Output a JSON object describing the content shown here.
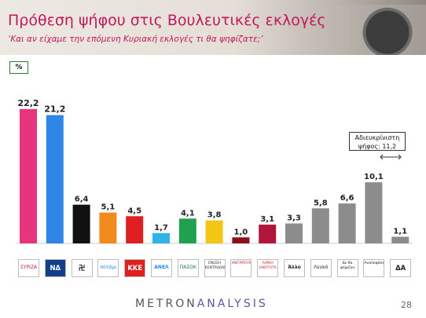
{
  "header": {
    "title": "Πρόθεση ψήφου στις Βουλευτικές εκλογές",
    "subtitle": "‘Και αν είχαμε την επόμενη Κυριακή εκλογές τι θα ψηφίζατε;’"
  },
  "unit_label": "%",
  "annotation": {
    "line1": "Αδιευκρίνιστη",
    "line2": "ψήφος: 11,2"
  },
  "chart_data": {
    "type": "bar",
    "categories": [
      "ΣΥΡΙΖΑ",
      "ΝΔ",
      "Χρυσή Αυγή",
      "Ποτάμι",
      "ΚΚΕ",
      "ΑΝΕΛ",
      "ΠΑΣΟΚ",
      "Ένωση Κεντρώων",
      "ΑΝΤΑΡΣΥΑ",
      "ΛΑΪΚΗ ΕΝΟΤΗΤΑ",
      "Άλλο",
      "Λευκό",
      "Δε θα ψήφιζαν",
      "Αναποφάσιστοι",
      "ΔΑ"
    ],
    "values": [
      22.2,
      21.2,
      6.4,
      5.1,
      4.5,
      1.7,
      4.1,
      3.8,
      1.0,
      3.1,
      3.3,
      5.8,
      6.6,
      10.1,
      1.1
    ],
    "value_labels": [
      "22,2",
      "21,2",
      "6,4",
      "5,1",
      "4,5",
      "1,7",
      "4,1",
      "3,8",
      "1,0",
      "3,1",
      "3,3",
      "5,8",
      "6,6",
      "10,1",
      "1,1"
    ],
    "colors": [
      "#e8337d",
      "#2f86e6",
      "#111111",
      "#f28a1e",
      "#e02020",
      "#2fb2e8",
      "#21a150",
      "#f5c516",
      "#8b0f1e",
      "#b0163a",
      "#8c8c8c",
      "#8c8c8c",
      "#8c8c8c",
      "#8c8c8c",
      "#8c8c8c"
    ],
    "ylim": [
      0,
      24
    ],
    "grid": false,
    "legend": "bottom"
  },
  "legend_items": [
    {
      "text": "ΣΥΡΙΖΑ",
      "bg": "#ffffff",
      "fg": "#c2185b"
    },
    {
      "text": "ΝΔ",
      "bg": "#123f8c",
      "fg": "#ffffff"
    },
    {
      "text": "卍",
      "bg": "#ffffff",
      "fg": "#000000"
    },
    {
      "text": "ποτάμι",
      "bg": "#ffffff",
      "fg": "#1e88e5"
    },
    {
      "text": "ΚΚΕ",
      "bg": "#e02020",
      "fg": "#ffffff"
    },
    {
      "text": "ΑΝΕΛ",
      "bg": "#ffffff",
      "fg": "#1e88e5"
    },
    {
      "text": "ΠΑΣΟΚ",
      "bg": "#ffffff",
      "fg": "#1b7a3a"
    },
    {
      "text": "ΕΝΩΣΗ ΚΕΝΤΡΩΩΝ",
      "bg": "#ffffff",
      "fg": "#333333"
    },
    {
      "text": "ΑΝΤΑΡΣΥΑ",
      "bg": "#ffffff",
      "fg": "#b71c1c"
    },
    {
      "text": "ΛΑΪΚΗ ΕΝΟΤΗΤΑ",
      "bg": "#ffffff",
      "fg": "#c62828"
    },
    {
      "text": "Άλλο",
      "bg": "#ffffff",
      "fg": "#222222"
    },
    {
      "text": "Λευκό",
      "bg": "#ffffff",
      "fg": "#222222"
    },
    {
      "text": "Δε θα ψήφιζαν",
      "bg": "#ffffff",
      "fg": "#222222"
    },
    {
      "text": "Αναποφάσιστοι",
      "bg": "#ffffff",
      "fg": "#222222"
    },
    {
      "text": "ΔΑ",
      "bg": "#ffffff",
      "fg": "#222222"
    }
  ],
  "footer": {
    "brand_a": "METRON",
    "brand_b": "ANALYSIS",
    "page_number": "28"
  }
}
